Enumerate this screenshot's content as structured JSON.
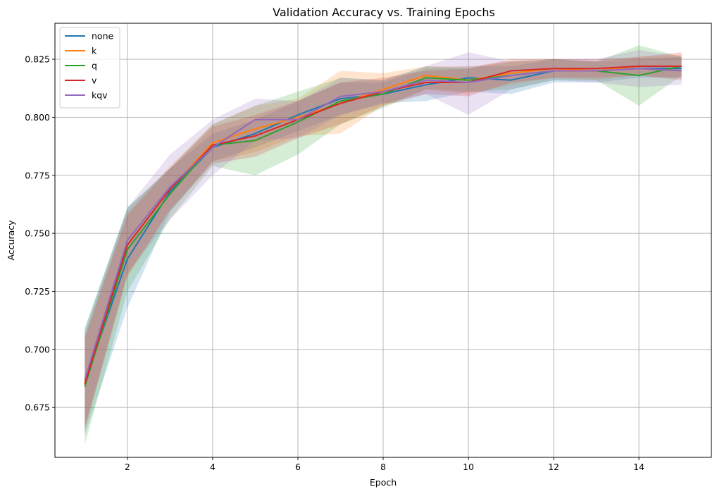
{
  "chart_data": {
    "type": "line",
    "title": "Validation Accuracy vs. Training Epochs",
    "xlabel": "Epoch",
    "ylabel": "Accuracy",
    "xlim": [
      0.3,
      15.7
    ],
    "ylim": [
      0.6535,
      0.8405
    ],
    "xticks": [
      2,
      4,
      6,
      8,
      10,
      12,
      14
    ],
    "yticks": [
      0.675,
      0.7,
      0.725,
      0.75,
      0.775,
      0.8,
      0.825
    ],
    "grid": true,
    "legend_position": "top-left",
    "x": [
      1,
      2,
      3,
      4,
      5,
      6,
      7,
      8,
      9,
      10,
      11,
      12,
      13,
      14,
      15
    ],
    "series": [
      {
        "name": "none",
        "color": "#1f77b4",
        "values": [
          0.686,
          0.739,
          0.768,
          0.787,
          0.793,
          0.801,
          0.808,
          0.81,
          0.814,
          0.817,
          0.816,
          0.82,
          0.82,
          0.821,
          0.821
        ],
        "lower": [
          0.663,
          0.718,
          0.759,
          0.781,
          0.787,
          0.794,
          0.801,
          0.806,
          0.807,
          0.811,
          0.81,
          0.815,
          0.815,
          0.817,
          0.817
        ],
        "upper": [
          0.709,
          0.761,
          0.778,
          0.793,
          0.799,
          0.807,
          0.815,
          0.815,
          0.821,
          0.822,
          0.822,
          0.825,
          0.824,
          0.825,
          0.826
        ]
      },
      {
        "name": "k",
        "color": "#ff7f0e",
        "values": [
          0.686,
          0.745,
          0.769,
          0.789,
          0.795,
          0.8,
          0.806,
          0.812,
          0.818,
          0.816,
          0.819,
          0.821,
          0.82,
          0.822,
          0.822
        ],
        "lower": [
          0.666,
          0.731,
          0.76,
          0.781,
          0.785,
          0.792,
          0.793,
          0.805,
          0.812,
          0.81,
          0.814,
          0.817,
          0.816,
          0.818,
          0.817
        ],
        "upper": [
          0.706,
          0.759,
          0.779,
          0.797,
          0.805,
          0.808,
          0.82,
          0.819,
          0.822,
          0.822,
          0.824,
          0.825,
          0.824,
          0.826,
          0.827
        ]
      },
      {
        "name": "q",
        "color": "#2ca02c",
        "values": [
          0.684,
          0.743,
          0.767,
          0.788,
          0.79,
          0.798,
          0.807,
          0.81,
          0.817,
          0.816,
          0.818,
          0.82,
          0.82,
          0.818,
          0.822
        ],
        "lower": [
          0.659,
          0.725,
          0.756,
          0.779,
          0.775,
          0.784,
          0.797,
          0.804,
          0.812,
          0.811,
          0.812,
          0.816,
          0.816,
          0.805,
          0.818
        ],
        "upper": [
          0.709,
          0.761,
          0.778,
          0.797,
          0.805,
          0.811,
          0.817,
          0.816,
          0.822,
          0.821,
          0.824,
          0.825,
          0.824,
          0.831,
          0.826
        ]
      },
      {
        "name": "v",
        "color": "#d62728",
        "values": [
          0.685,
          0.745,
          0.769,
          0.788,
          0.792,
          0.799,
          0.806,
          0.811,
          0.815,
          0.815,
          0.82,
          0.821,
          0.821,
          0.822,
          0.822
        ],
        "lower": [
          0.665,
          0.732,
          0.76,
          0.78,
          0.783,
          0.791,
          0.797,
          0.805,
          0.81,
          0.809,
          0.815,
          0.817,
          0.817,
          0.818,
          0.816
        ],
        "upper": [
          0.705,
          0.758,
          0.778,
          0.796,
          0.801,
          0.807,
          0.815,
          0.817,
          0.82,
          0.821,
          0.825,
          0.825,
          0.825,
          0.826,
          0.828
        ]
      },
      {
        "name": "kqv",
        "color": "#9467bd",
        "values": [
          0.687,
          0.747,
          0.77,
          0.787,
          0.799,
          0.799,
          0.809,
          0.811,
          0.816,
          0.815,
          0.818,
          0.82,
          0.82,
          0.821,
          0.82
        ],
        "lower": [
          0.667,
          0.733,
          0.756,
          0.775,
          0.79,
          0.791,
          0.801,
          0.806,
          0.81,
          0.801,
          0.812,
          0.816,
          0.815,
          0.813,
          0.814
        ],
        "upper": [
          0.707,
          0.761,
          0.784,
          0.799,
          0.808,
          0.807,
          0.817,
          0.816,
          0.822,
          0.828,
          0.824,
          0.825,
          0.825,
          0.829,
          0.826
        ]
      }
    ]
  }
}
